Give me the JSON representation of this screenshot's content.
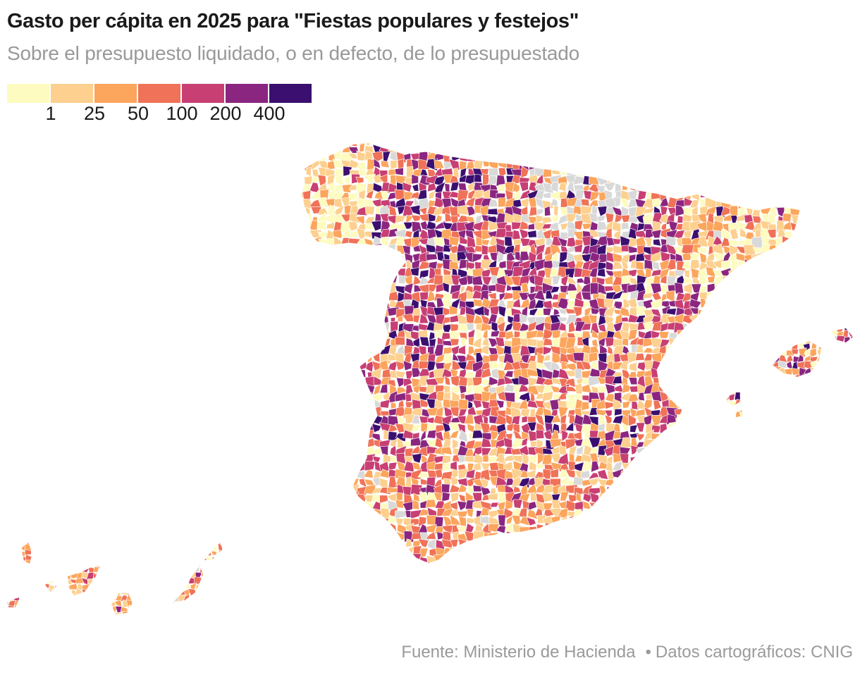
{
  "title": "Gasto per cápita en 2025 para \"Fiestas populares y festejos\"",
  "subtitle": "Sobre el presupuesto liquidado, o en defecto, de lo presupuestado",
  "legend": {
    "colors": [
      "#fdfbbf",
      "#fdd08f",
      "#fca55d",
      "#f07258",
      "#c83f73",
      "#8a2680",
      "#3b0f70"
    ],
    "thresholds": [
      "1",
      "25",
      "50",
      "100",
      "200",
      "400"
    ]
  },
  "no_data_color": "#d9d9d9",
  "source": {
    "fuente": "Fuente: Ministerio de Hacienda",
    "separator": "•",
    "cartografia": "Datos cartográficos: CNIG"
  }
}
